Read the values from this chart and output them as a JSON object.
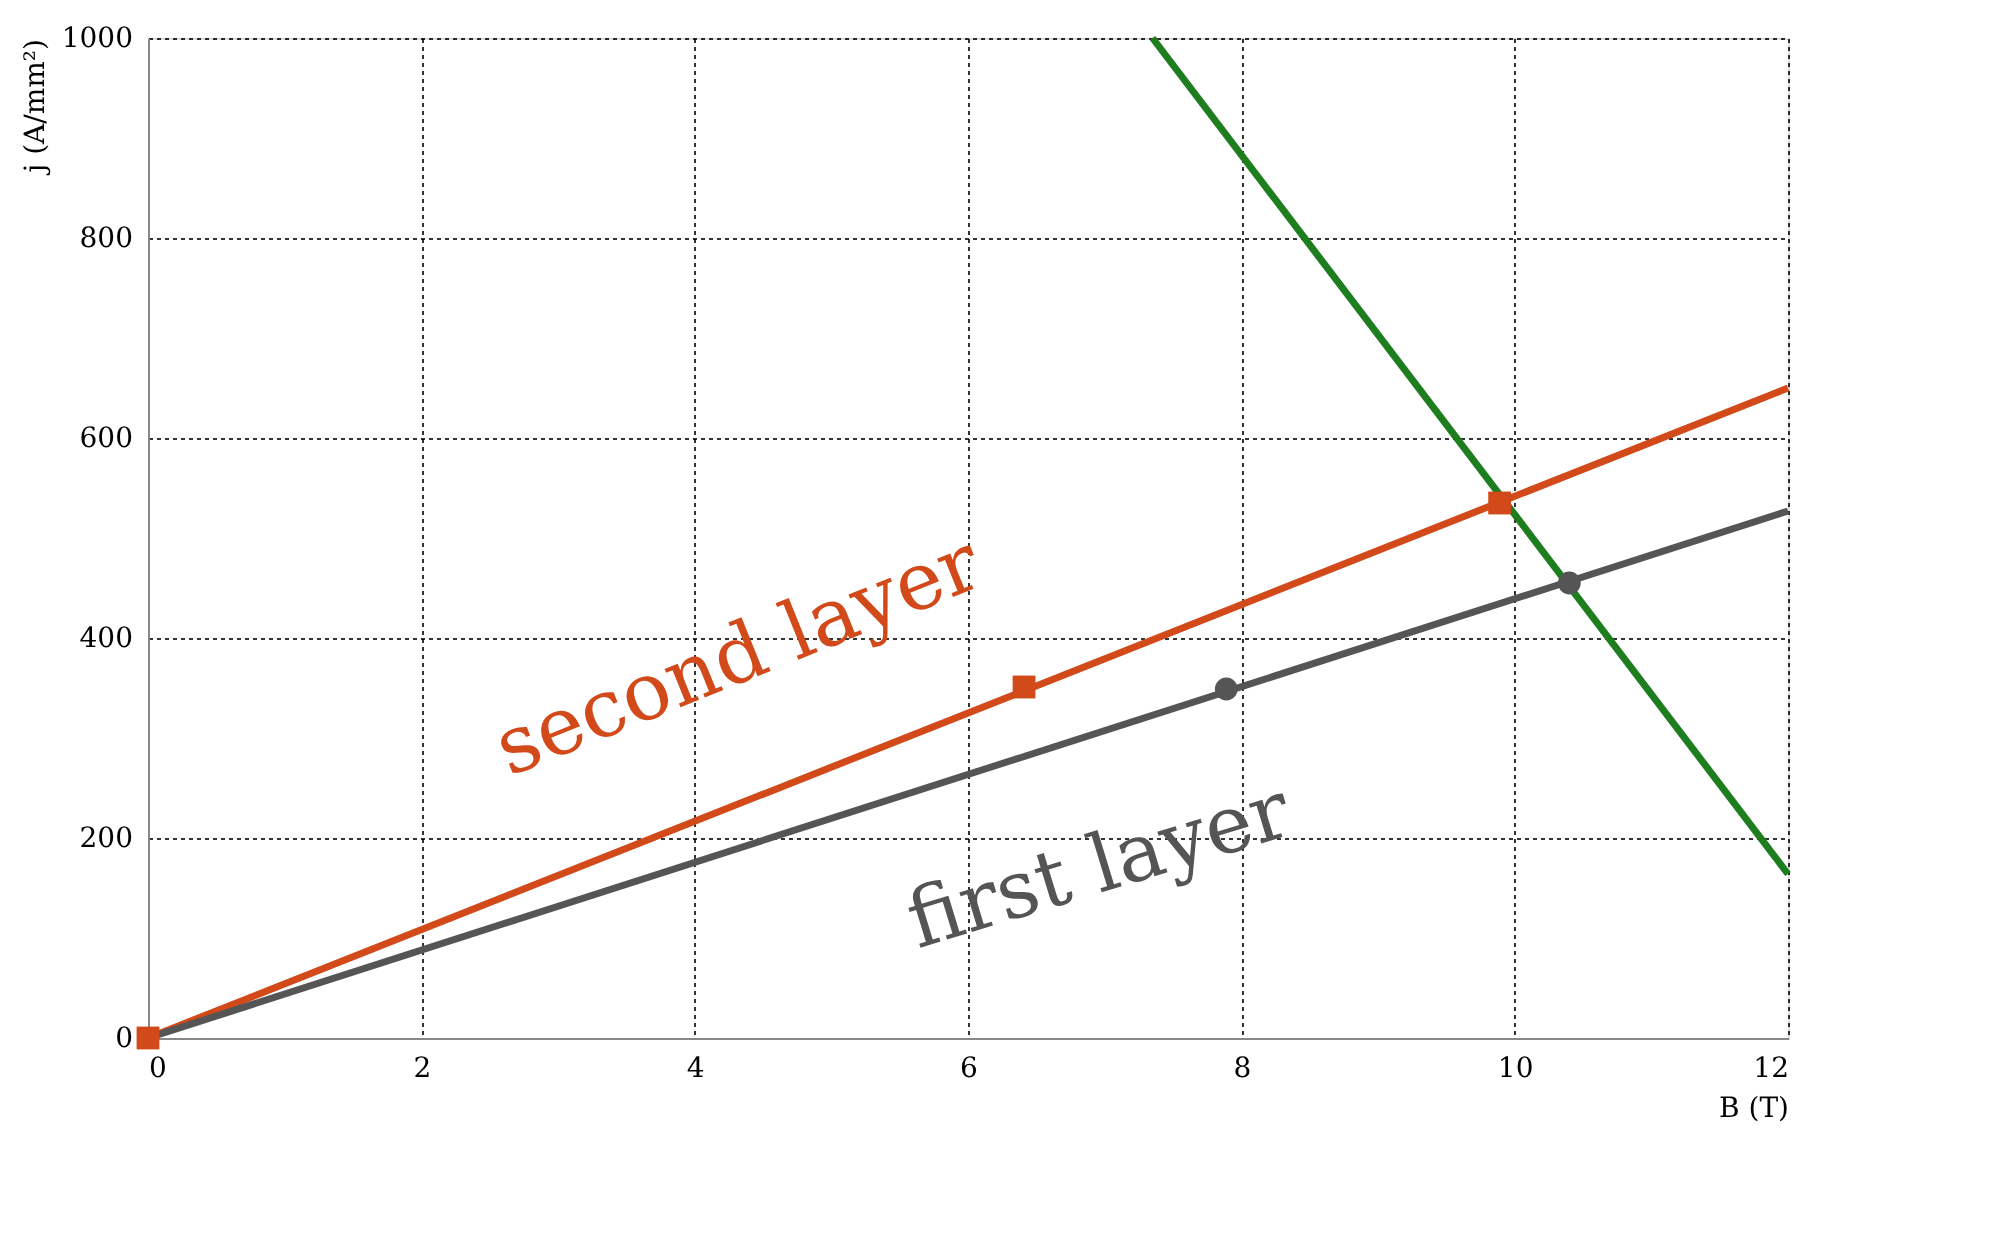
{
  "chart_data": {
    "type": "line",
    "xlabel": "B (T)",
    "ylabel": "j (A/mm²)",
    "xlim": [
      0,
      12
    ],
    "ylim": [
      0,
      1000
    ],
    "xticks": [
      0,
      2,
      4,
      6,
      8,
      10,
      12
    ],
    "yticks": [
      0,
      200,
      400,
      600,
      800,
      1000
    ],
    "grid": true,
    "series": [
      {
        "color": "#d2491a",
        "x": [
          0,
          12
        ],
        "values": [
          0,
          650
        ]
      },
      {
        "color": "#555555",
        "x": [
          0,
          12
        ],
        "values": [
          0,
          527
        ]
      },
      {
        "color": "#1e7d1e",
        "x": [
          7.35,
          12
        ],
        "values": [
          1000,
          164
        ]
      },
      {
        "type": "scatter",
        "color": "#d2491a",
        "x": [
          0,
          6.41,
          9.89
        ],
        "values": [
          0,
          351,
          535
        ],
        "marker": "square"
      },
      {
        "type": "scatter",
        "color": "#555555",
        "x": [
          7.89,
          10.4
        ],
        "values": [
          349,
          455
        ],
        "marker": "circle"
      }
    ],
    "annotations": [
      "second layer",
      "first layer"
    ]
  }
}
